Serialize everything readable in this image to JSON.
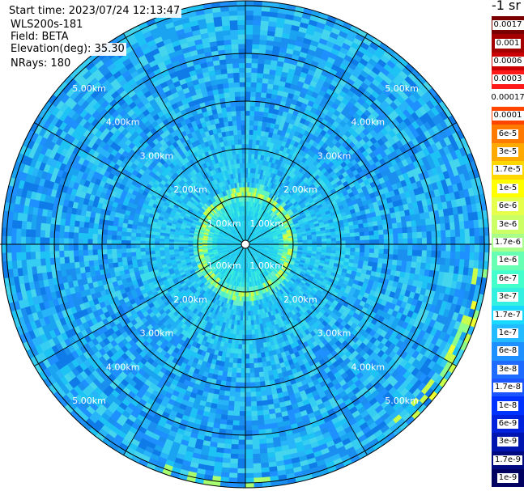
{
  "header": {
    "start_time": "Start time: 2023/07/24 12:13:47",
    "instrument": "WLS200s-181",
    "field": "Field: BETA",
    "elevation": "Elevation(deg): 35.30",
    "nrays": "NRays: 180"
  },
  "colorbar": {
    "unit": "-1 sr",
    "ticks": [
      "0.0017",
      "0.001",
      "0.0006",
      "0.0003",
      "0.00017",
      "0.0001",
      "6e-5",
      "3e-5",
      "1.7e-5",
      "1e-5",
      "6e-6",
      "3e-6",
      "1.7e-6",
      "1e-6",
      "6e-7",
      "3e-7",
      "1.7e-7",
      "1e-7",
      "6e-8",
      "3e-8",
      "1.7e-8",
      "1e-8",
      "6e-9",
      "3e-9",
      "1.7e-9",
      "1e-9"
    ],
    "colors": [
      "#7a0000",
      "#a40000",
      "#cc0000",
      "#ff1a1a",
      "#ffffff",
      "#ff4400",
      "#ff7a00",
      "#ffaa00",
      "#ffd700",
      "#ffff00",
      "#e6ff4d",
      "#ccff66",
      "#a8ff8a",
      "#66ffb3",
      "#44ffcc",
      "#33f0e0",
      "#1ad9ff",
      "#22bbff",
      "#1e90ff",
      "#1e6bff",
      "#1a55ff",
      "#0033ff",
      "#0022dd",
      "#0014b0",
      "#000a80",
      "#000060"
    ]
  },
  "chart_data": {
    "type": "heatmap",
    "projection": "polar (PPI scan)",
    "field": "BETA",
    "nrays": 180,
    "elevation_deg": 35.3,
    "range_rings_km": [
      1.0,
      2.0,
      3.0,
      4.0,
      5.0
    ],
    "ring_labels": [
      "1.00km",
      "2.00km",
      "3.00km",
      "4.00km",
      "5.00km"
    ],
    "max_range_km": 5.0,
    "spokes_deg": [
      0,
      30,
      60,
      90,
      120,
      150,
      180,
      210,
      240,
      270,
      300,
      330
    ],
    "value_zones": [
      {
        "range_km": [
          0.0,
          0.6
        ],
        "value": "1.7e-7"
      },
      {
        "range_km": [
          0.6,
          0.9
        ],
        "value": "6e-7"
      },
      {
        "range_km": [
          0.9,
          1.1
        ],
        "value": "3e-6"
      },
      {
        "range_km": [
          1.1,
          2.0
        ],
        "value": "1e-7"
      },
      {
        "range_km": [
          2.0,
          5.0
        ],
        "value": "3e-8"
      }
    ]
  }
}
